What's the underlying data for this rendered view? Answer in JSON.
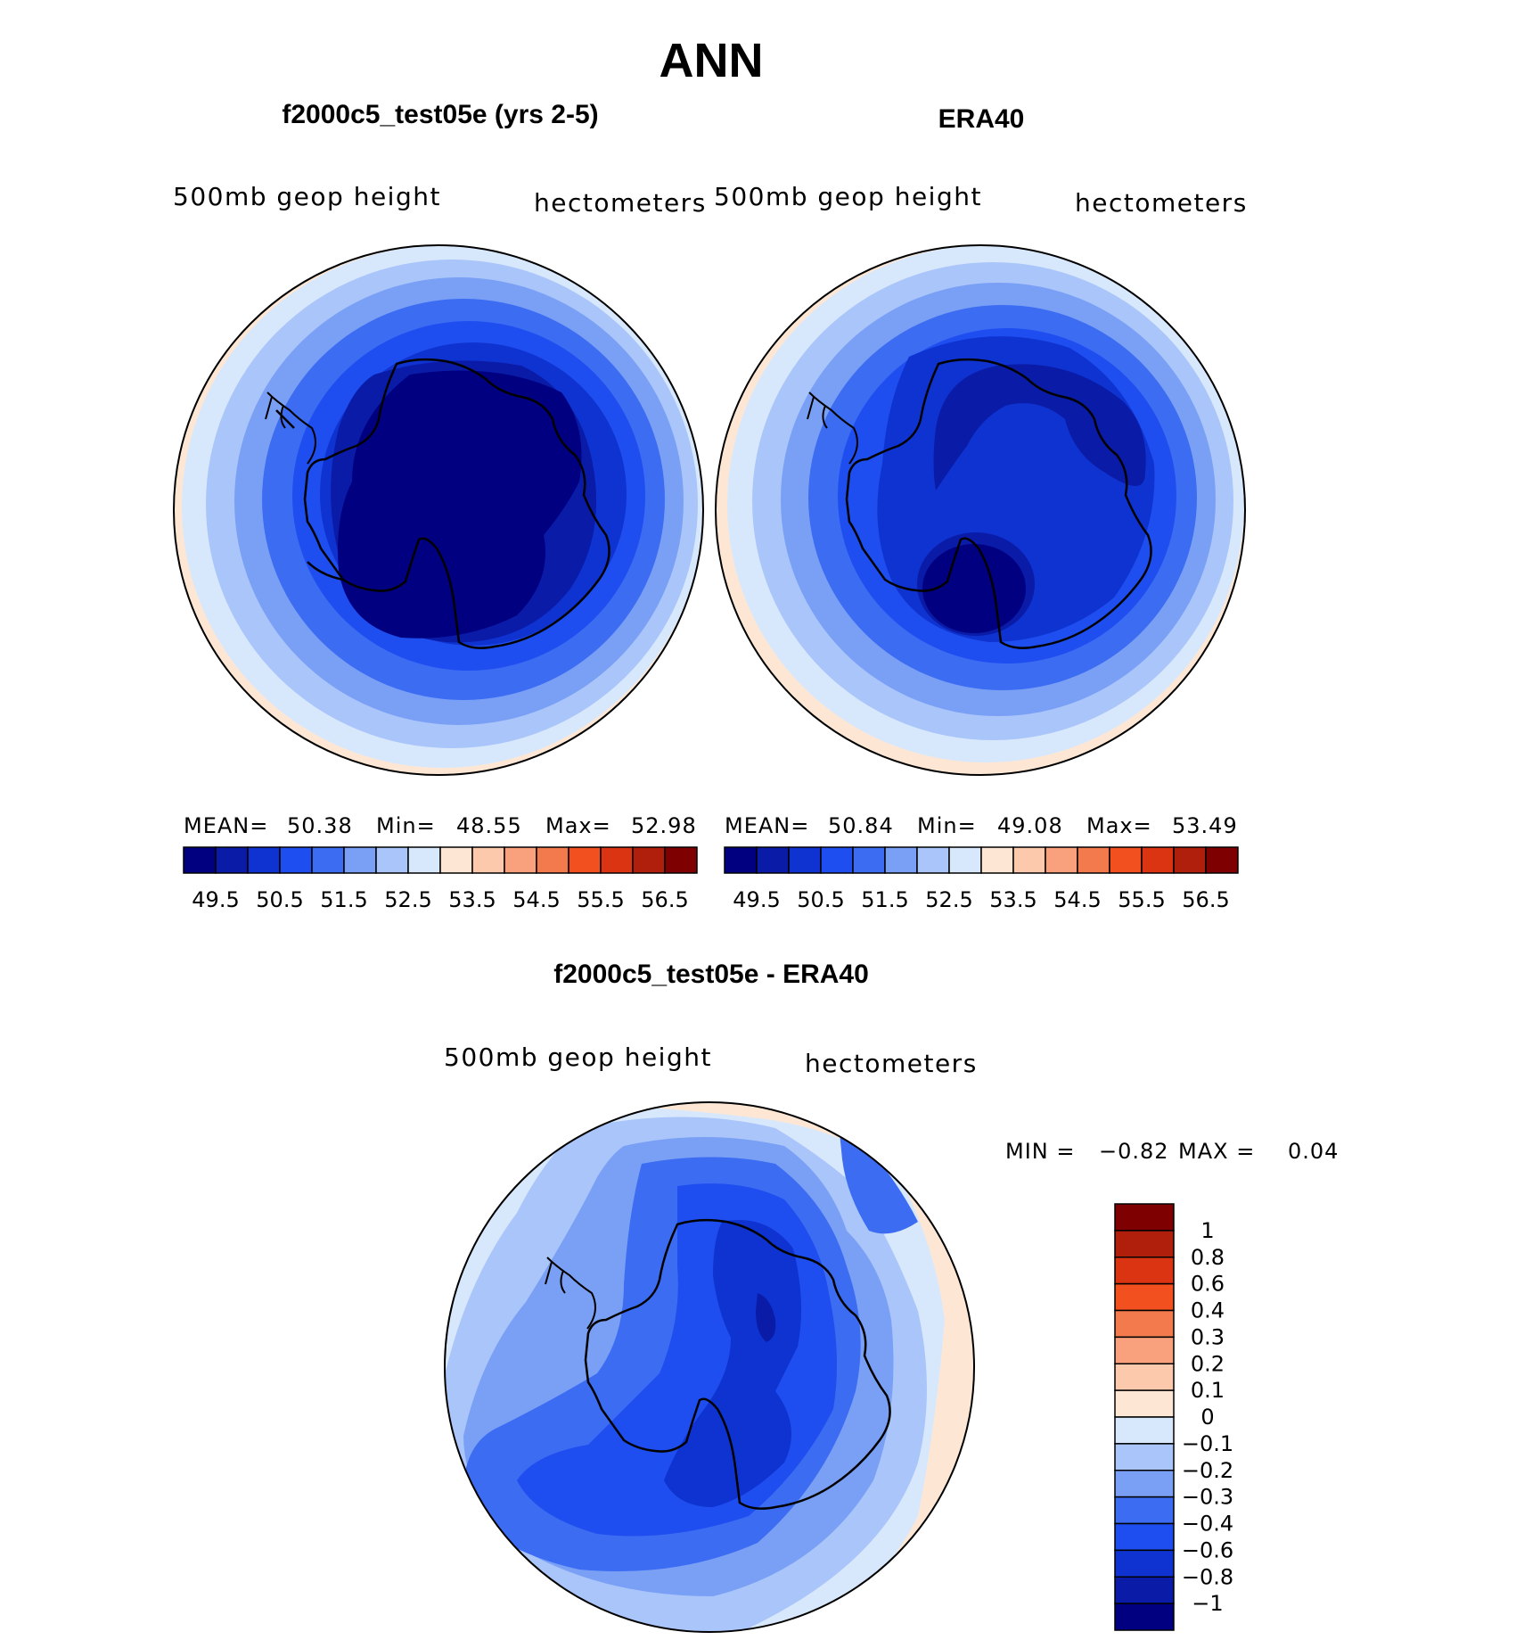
{
  "figure_title": "ANN",
  "colors": {
    "seq": [
      "#000080",
      "#0a1ba8",
      "#0f33d0",
      "#1e4ef0",
      "#3c6cf2",
      "#7aa0f6",
      "#aac5fa",
      "#d8e8fc",
      "#fde7d4",
      "#fcc9ad",
      "#f9a07c",
      "#f37a4c",
      "#f2501f",
      "#db3412",
      "#b01e0c",
      "#7f0000"
    ],
    "diff": [
      "#000080",
      "#0a1ba8",
      "#0f33d0",
      "#1e4ef0",
      "#3c6cf2",
      "#7aa0f6",
      "#aac5fa",
      "#d8e8fc",
      "#fde7d4",
      "#fcc9ad",
      "#f9a07c",
      "#f37a4c",
      "#f2501f",
      "#db3412",
      "#b01e0c",
      "#7f0000"
    ],
    "coast": "#000000"
  },
  "panels": [
    {
      "id": "model",
      "title": "f2000c5_test05e (yrs 2-5)",
      "left_label": "500mb geop height",
      "right_label": "hectometers",
      "stats": {
        "mean_label": "MEAN=",
        "mean": "50.38",
        "min_label": "Min=",
        "min": "48.55",
        "max_label": "Max=",
        "max": "52.98"
      },
      "contour_levels": [
        49.5,
        50.5,
        51.5,
        52.5,
        53.5,
        54.5,
        55.5,
        56.5
      ]
    },
    {
      "id": "obs",
      "title": "ERA40",
      "left_label": "500mb geop height",
      "right_label": "hectometers",
      "stats": {
        "mean_label": "MEAN=",
        "mean": "50.84",
        "min_label": "Min=",
        "min": "49.08",
        "max_label": "Max=",
        "max": "53.49"
      },
      "contour_levels": [
        49.5,
        50.5,
        51.5,
        52.5,
        53.5,
        54.5,
        55.5,
        56.5
      ]
    }
  ],
  "colorbar_ticks": [
    "49.5",
    "50.5",
    "51.5",
    "52.5",
    "53.5",
    "54.5",
    "55.5",
    "56.5"
  ],
  "diff_panel": {
    "title": "f2000c5_test05e - ERA40",
    "left_label": "500mb geop height",
    "right_label": "hectometers",
    "min_label": "MIN =",
    "min": "−0.82",
    "max_label": "MAX =",
    "max": "0.04",
    "colorbar_ticks": [
      "1",
      "0.8",
      "0.6",
      "0.4",
      "0.3",
      "0.2",
      "0.1",
      "0",
      "−0.1",
      "−0.2",
      "−0.3",
      "−0.4",
      "−0.6",
      "−0.8",
      "−1"
    ]
  },
  "chart_data": [
    {
      "type": "heatmap",
      "title": "f2000c5_test05e (yrs 2-5)",
      "variable": "500mb geop height",
      "units": "hectometers",
      "projection": "south polar stereographic",
      "mean": 50.38,
      "min": 48.55,
      "max": 52.98,
      "levels": [
        49.5,
        50.5,
        51.5,
        52.5,
        53.5,
        54.5,
        55.5,
        56.5
      ]
    },
    {
      "type": "heatmap",
      "title": "ERA40",
      "variable": "500mb geop height",
      "units": "hectometers",
      "projection": "south polar stereographic",
      "mean": 50.84,
      "min": 49.08,
      "max": 53.49,
      "levels": [
        49.5,
        50.5,
        51.5,
        52.5,
        53.5,
        54.5,
        55.5,
        56.5
      ]
    },
    {
      "type": "heatmap",
      "title": "f2000c5_test05e - ERA40",
      "variable": "500mb geop height",
      "units": "hectometers",
      "projection": "south polar stereographic",
      "min": -0.82,
      "max": 0.04,
      "levels": [
        -1,
        -0.8,
        -0.6,
        -0.4,
        -0.3,
        -0.2,
        -0.1,
        0,
        0.1,
        0.2,
        0.3,
        0.4,
        0.6,
        0.8,
        1
      ]
    }
  ]
}
